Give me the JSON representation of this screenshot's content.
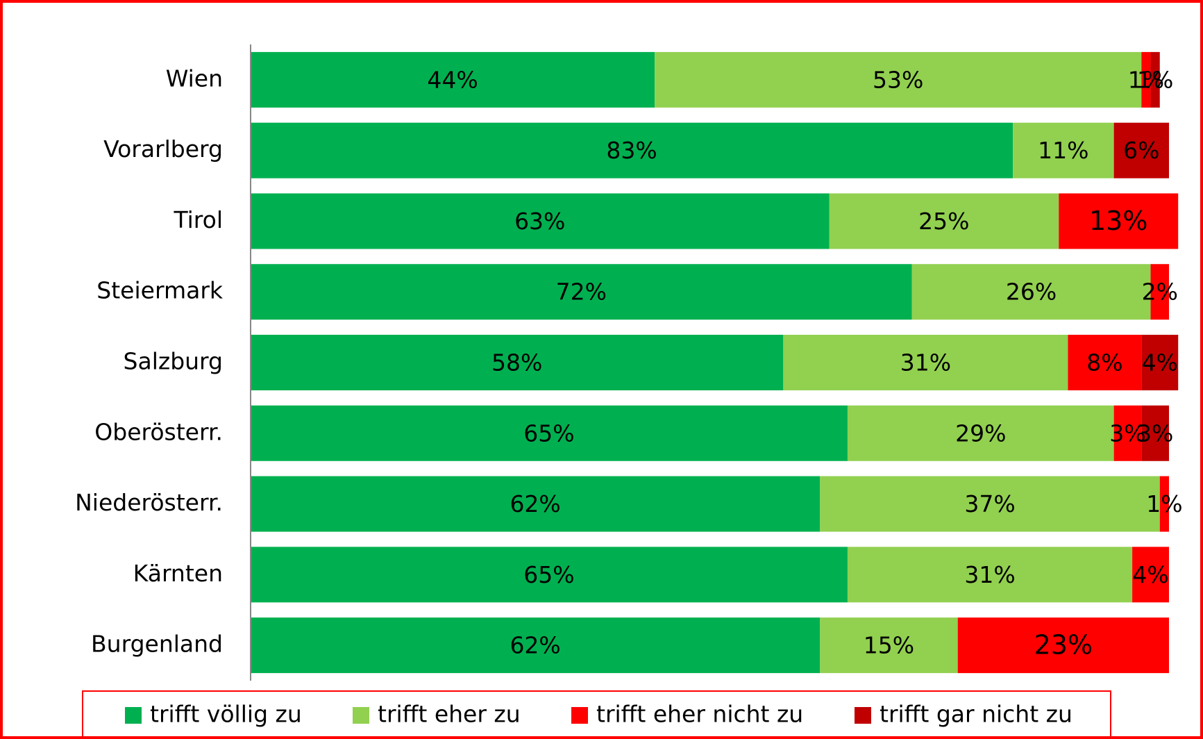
{
  "chart_data": {
    "type": "bar",
    "orientation": "horizontal",
    "stacked": true,
    "categories": [
      "Wien",
      "Vorarlberg",
      "Tirol",
      "Steiermark",
      "Salzburg",
      "Oberösterr.",
      "Niederösterr.",
      "Kärnten",
      "Burgenland"
    ],
    "xlim": [
      0,
      100
    ],
    "legend": "bottom",
    "series": [
      {
        "name": "trifft völlig zu",
        "color": "#00b050",
        "values": [
          44,
          83,
          63,
          72,
          58,
          65,
          62,
          65,
          62
        ],
        "value_labels": [
          "44%",
          "83%",
          "63%",
          "72%",
          "58%",
          "65%",
          "62%",
          "65%",
          "62%"
        ]
      },
      {
        "name": "trifft eher zu",
        "color": "#92d050",
        "values": [
          53,
          11,
          25,
          26,
          31,
          29,
          37,
          31,
          15
        ],
        "value_labels": [
          "53%",
          "11%",
          "25%",
          "26%",
          "31%",
          "29%",
          "37%",
          "31%",
          "15%"
        ]
      },
      {
        "name": "trifft eher nicht zu",
        "color": "#ff0000",
        "values": [
          1,
          null,
          13,
          2,
          8,
          3,
          1,
          4,
          23
        ],
        "value_labels": [
          "1%",
          null,
          "13%",
          "2%",
          "8%",
          "3%",
          "1%",
          "4%",
          "23%"
        ]
      },
      {
        "name": "trifft gar nicht zu",
        "color": "#c00000",
        "values": [
          1,
          6,
          null,
          null,
          4,
          3,
          null,
          null,
          null
        ],
        "value_labels": [
          "1%",
          "6%",
          null,
          null,
          "4%",
          "3%",
          null,
          null,
          null
        ]
      }
    ]
  }
}
